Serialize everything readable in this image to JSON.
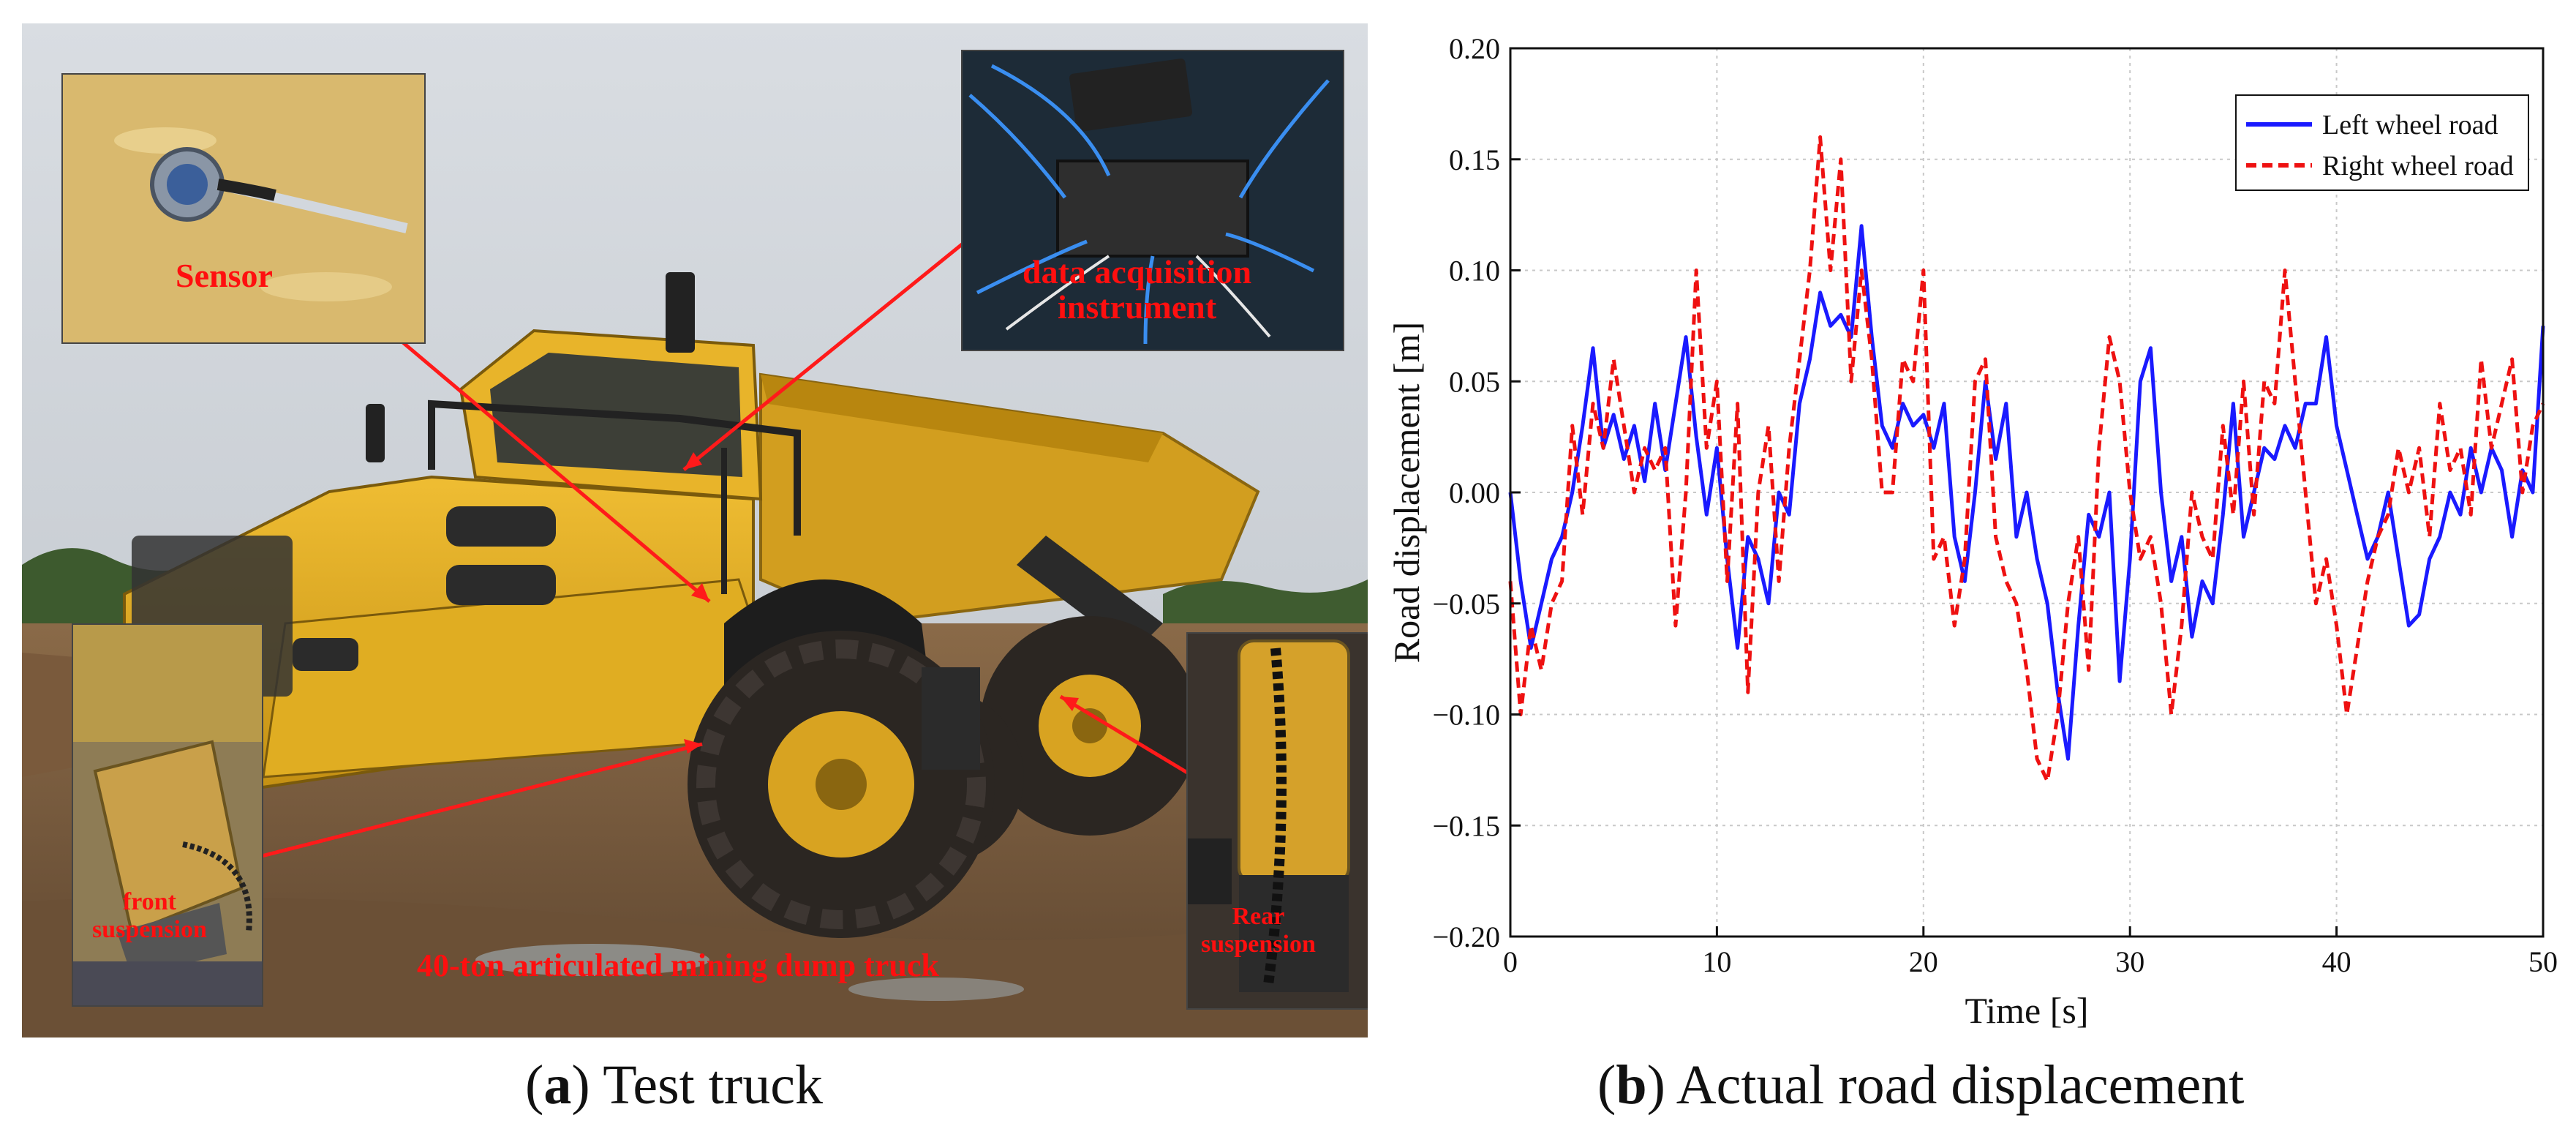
{
  "panel_a": {
    "labels": {
      "sensor": "Sensor",
      "daq_line1": "data acquisition",
      "daq_line2": "instrument",
      "front_line1": "front",
      "front_line2": "suspension",
      "rear_line1": "Rear",
      "rear_line2": "suspension",
      "truck": "40-ton articulated mining dump truck"
    },
    "colors": {
      "annotation": "#ff0f0f",
      "truck_body": "#e0a81c"
    },
    "caption_letter": "a",
    "caption_text": "Test truck"
  },
  "panel_b": {
    "caption_letter": "b",
    "caption_text": "Actual road displacement"
  },
  "chart_data": {
    "type": "line",
    "title": "",
    "xlabel": "Time [s]",
    "ylabel": "Road displacement [m]",
    "xlim": [
      0,
      50
    ],
    "ylim": [
      -0.2,
      0.2
    ],
    "xticks": [
      0,
      10,
      20,
      30,
      40,
      50
    ],
    "xtick_labels": [
      "0",
      "10",
      "20",
      "30",
      "40",
      "50"
    ],
    "yticks": [
      -0.2,
      -0.15,
      -0.1,
      -0.05,
      0,
      0.05,
      0.1,
      0.15,
      0.2
    ],
    "ytick_labels": [
      "−0.20",
      "−0.15",
      "−0.10",
      "−0.05",
      "0.00",
      "0.05",
      "0.10",
      "0.15",
      "0.20"
    ],
    "grid": true,
    "legend_position": "top-right",
    "series": [
      {
        "name": "Left wheel road",
        "color": "#1a1aff",
        "style": "solid",
        "x": [
          0,
          0.5,
          1,
          1.5,
          2,
          2.5,
          3,
          3.5,
          4,
          4.5,
          5,
          5.5,
          6,
          6.5,
          7,
          7.5,
          8,
          8.5,
          9,
          9.5,
          10,
          10.5,
          11,
          11.5,
          12,
          12.5,
          13,
          13.5,
          14,
          14.5,
          15,
          15.5,
          16,
          16.5,
          17,
          17.5,
          18,
          18.5,
          19,
          19.5,
          20,
          20.5,
          21,
          21.5,
          22,
          22.5,
          23,
          23.5,
          24,
          24.5,
          25,
          25.5,
          26,
          26.5,
          27,
          27.5,
          28,
          28.5,
          29,
          29.5,
          30,
          30.5,
          31,
          31.5,
          32,
          32.5,
          33,
          33.5,
          34,
          34.5,
          35,
          35.5,
          36,
          36.5,
          37,
          37.5,
          38,
          38.5,
          39,
          39.5,
          40,
          40.5,
          41,
          41.5,
          42,
          42.5,
          43,
          43.5,
          44,
          44.5,
          45,
          45.5,
          46,
          46.5,
          47,
          47.5,
          48,
          48.5,
          49,
          49.5,
          50
        ],
        "values": [
          0.0,
          -0.04,
          -0.07,
          -0.05,
          -0.03,
          -0.02,
          0.0,
          0.03,
          0.065,
          0.02,
          0.035,
          0.015,
          0.03,
          0.005,
          0.04,
          0.01,
          0.04,
          0.07,
          0.025,
          -0.01,
          0.02,
          -0.03,
          -0.07,
          -0.02,
          -0.03,
          -0.05,
          0.0,
          -0.01,
          0.04,
          0.06,
          0.09,
          0.075,
          0.08,
          0.07,
          0.12,
          0.07,
          0.03,
          0.02,
          0.04,
          0.03,
          0.035,
          0.02,
          0.04,
          -0.02,
          -0.04,
          0.0,
          0.05,
          0.015,
          0.04,
          -0.02,
          0.0,
          -0.03,
          -0.05,
          -0.09,
          -0.12,
          -0.06,
          -0.01,
          -0.02,
          0.0,
          -0.085,
          -0.03,
          0.05,
          0.065,
          0.0,
          -0.04,
          -0.02,
          -0.065,
          -0.04,
          -0.05,
          -0.01,
          0.04,
          -0.02,
          0.0,
          0.02,
          0.015,
          0.03,
          0.02,
          0.04,
          0.04,
          0.07,
          0.03,
          0.01,
          -0.01,
          -0.03,
          -0.02,
          0.0,
          -0.03,
          -0.06,
          -0.055,
          -0.03,
          -0.02,
          0.0,
          -0.01,
          0.02,
          0.0,
          0.02,
          0.01,
          -0.02,
          0.01,
          0.0,
          0.075
        ]
      },
      {
        "name": "Right wheel road",
        "color": "#ee1111",
        "style": "dashed",
        "x": [
          0,
          0.5,
          1,
          1.5,
          2,
          2.5,
          3,
          3.5,
          4,
          4.5,
          5,
          5.5,
          6,
          6.5,
          7,
          7.5,
          8,
          8.5,
          9,
          9.5,
          10,
          10.5,
          11,
          11.5,
          12,
          12.5,
          13,
          13.5,
          14,
          14.5,
          15,
          15.5,
          16,
          16.5,
          17,
          17.5,
          18,
          18.5,
          19,
          19.5,
          20,
          20.5,
          21,
          21.5,
          22,
          22.5,
          23,
          23.5,
          24,
          24.5,
          25,
          25.5,
          26,
          26.5,
          27,
          27.5,
          28,
          28.5,
          29,
          29.5,
          30,
          30.5,
          31,
          31.5,
          32,
          32.5,
          33,
          33.5,
          34,
          34.5,
          35,
          35.5,
          36,
          36.5,
          37,
          37.5,
          38,
          38.5,
          39,
          39.5,
          40,
          40.5,
          41,
          41.5,
          42,
          42.5,
          43,
          43.5,
          44,
          44.5,
          45,
          45.5,
          46,
          46.5,
          47,
          47.5,
          48,
          48.5,
          49,
          49.5,
          50
        ],
        "values": [
          -0.04,
          -0.1,
          -0.06,
          -0.08,
          -0.05,
          -0.04,
          0.03,
          -0.01,
          0.04,
          0.02,
          0.06,
          0.03,
          0.0,
          0.02,
          0.01,
          0.02,
          -0.06,
          0.0,
          0.1,
          0.02,
          0.05,
          -0.04,
          0.04,
          -0.09,
          0.0,
          0.03,
          -0.04,
          0.02,
          0.06,
          0.1,
          0.16,
          0.1,
          0.15,
          0.05,
          0.1,
          0.06,
          0.0,
          0.0,
          0.06,
          0.05,
          0.1,
          -0.03,
          -0.02,
          -0.06,
          -0.03,
          0.05,
          0.06,
          -0.02,
          -0.04,
          -0.05,
          -0.08,
          -0.12,
          -0.13,
          -0.1,
          -0.05,
          -0.02,
          -0.08,
          0.02,
          0.07,
          0.05,
          0.0,
          -0.03,
          -0.02,
          -0.05,
          -0.1,
          -0.06,
          0.0,
          -0.02,
          -0.03,
          0.03,
          -0.01,
          0.05,
          -0.01,
          0.05,
          0.04,
          0.1,
          0.05,
          0.0,
          -0.05,
          -0.03,
          -0.06,
          -0.1,
          -0.07,
          -0.04,
          -0.02,
          -0.01,
          0.02,
          0.0,
          0.02,
          -0.02,
          0.04,
          0.01,
          0.02,
          -0.01,
          0.06,
          0.02,
          0.04,
          0.06,
          0.0,
          0.03,
          0.04
        ]
      }
    ]
  }
}
